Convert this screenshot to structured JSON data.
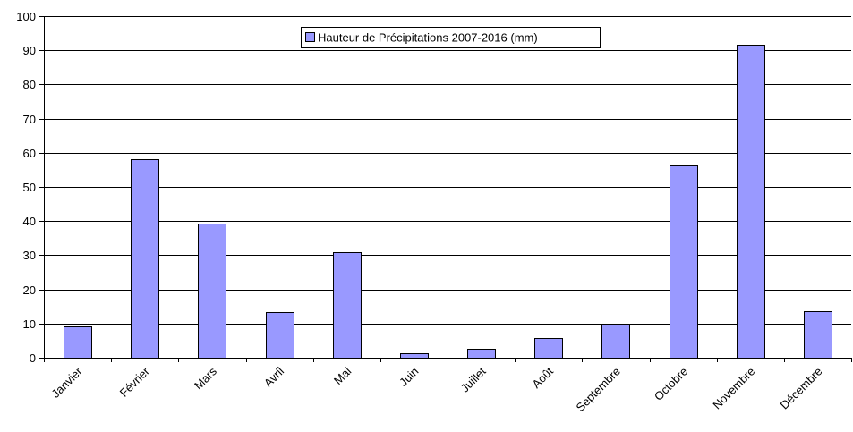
{
  "chart_data": {
    "type": "bar",
    "categories": [
      "Janvier",
      "Février",
      "Mars",
      "Avril",
      "Mai",
      "Juin",
      "Juillet",
      "Août",
      "Septembre",
      "Octobre",
      "Novembre",
      "Décembre"
    ],
    "series": [
      {
        "name": "Hauteur de Précipitations 2007-2016 (mm)",
        "values": [
          9.1,
          58,
          39.3,
          13.3,
          31,
          1.3,
          2.7,
          5.7,
          9.9,
          56.4,
          91.5,
          13.5
        ]
      }
    ],
    "ylim": [
      0,
      100
    ],
    "yticks": [
      "0",
      "10",
      "20",
      "30",
      "40",
      "50",
      "60",
      "70",
      "80",
      "90",
      "100"
    ],
    "grid": true,
    "legend_position": "top-center",
    "colors": {
      "bar_fill": "#9999ff",
      "bar_stroke": "#000000",
      "gridline": "#000000",
      "axis": "#000000"
    }
  }
}
